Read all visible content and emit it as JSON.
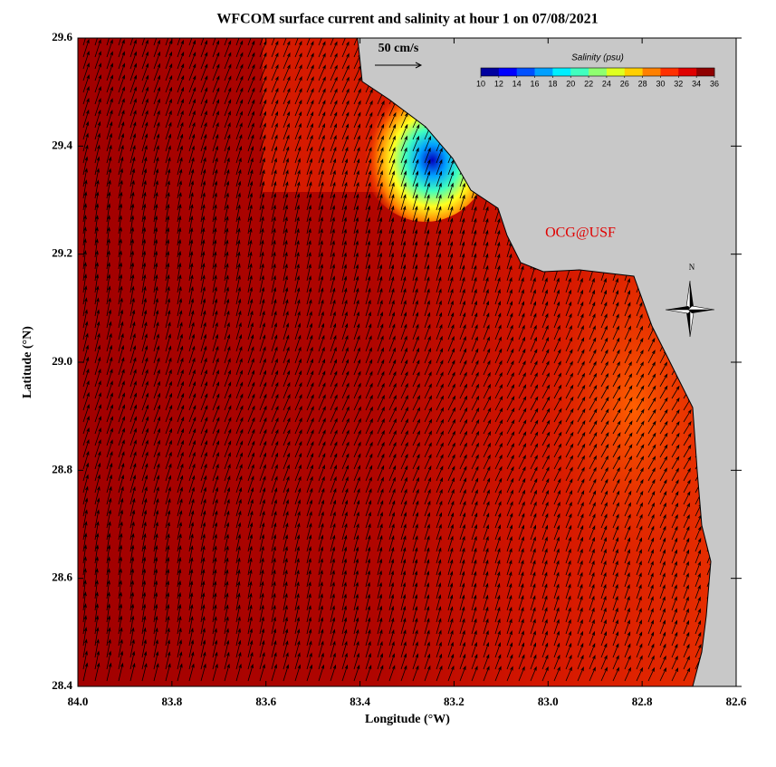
{
  "title": "WFCOM surface current and salinity at hour 1 on 07/08/2021",
  "x_axis": {
    "label": "Longitude (°W)",
    "lim": [
      84.0,
      82.6
    ],
    "ticks": [
      {
        "value": 84,
        "label": "84.0"
      },
      83.8,
      83.6,
      83.4,
      83.2,
      {
        "value": 83,
        "label": "83.0"
      },
      82.8,
      82.6
    ]
  },
  "y_axis": {
    "label": "Latitude (°N)",
    "lim": [
      28.4,
      29.6
    ],
    "ticks": [
      28.4,
      28.6,
      28.8,
      {
        "value": 29,
        "label": "29.0"
      },
      29.2,
      29.4,
      29.6
    ]
  },
  "colorbar": {
    "label": "Salinity (psu)",
    "lim": [
      10,
      36
    ],
    "ticks": [
      10,
      12,
      14,
      16,
      18,
      20,
      22,
      24,
      26,
      28,
      30,
      32,
      34,
      36
    ],
    "colors": [
      "#00009f",
      "#0000ff",
      "#0050ff",
      "#00a0ff",
      "#00efff",
      "#40ffbf",
      "#8fff70",
      "#dfff20",
      "#ffcf00",
      "#ff8000",
      "#ff3000",
      "#df0000",
      "#8f0000"
    ]
  },
  "scale_arrow": {
    "label": "50 cm/s"
  },
  "credit": "OCG@USF",
  "compass": "N"
}
